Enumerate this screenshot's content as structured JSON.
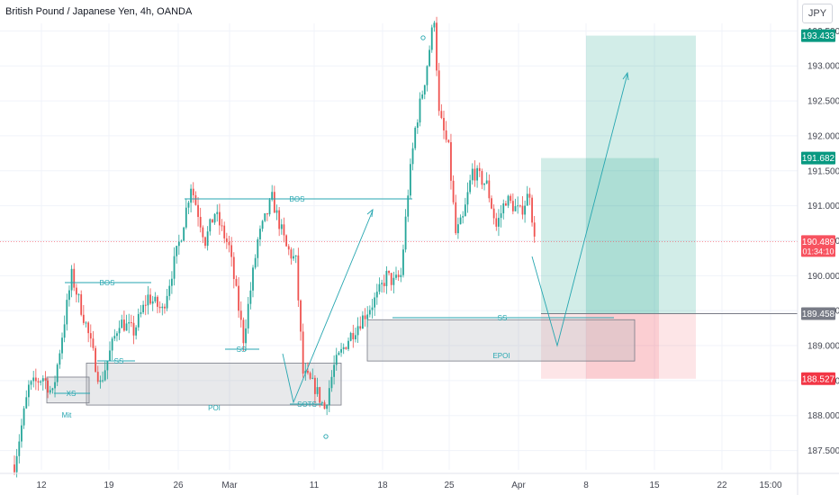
{
  "header": {
    "title": "British Pound / Japanese Yen, 4h, OANDA",
    "currency": "JPY"
  },
  "colors": {
    "up": "#26a69a",
    "down": "#ef5350",
    "accent": "#26a6b0",
    "target": "#089981",
    "stop": "#f23645",
    "current": "#f7525f",
    "neutral": "#787b86"
  },
  "chart_data": {
    "type": "candlestick",
    "title": "British Pound / Japanese Yen, 4h, OANDA",
    "ylim": [
      187.25,
      193.95
    ],
    "y_ticks": [
      "187.500",
      "188.000",
      "188.500",
      "189.000",
      "189.500",
      "190.000",
      "190.500",
      "191.000",
      "191.500",
      "192.000",
      "192.500",
      "193.000",
      "193.500"
    ],
    "x_ticks": [
      "12",
      "19",
      "26",
      "Mar",
      "11",
      "18",
      "25",
      "Apr",
      "8",
      "15",
      "22",
      "15:00"
    ],
    "key_points": [
      {
        "x": 0,
        "p": 187.3
      },
      {
        "x": 6,
        "p": 188.4
      },
      {
        "x": 12,
        "p": 188.55
      },
      {
        "x": 16,
        "p": 188.3
      },
      {
        "x": 24,
        "p": 190.0
      },
      {
        "x": 30,
        "p": 189.3
      },
      {
        "x": 36,
        "p": 188.45
      },
      {
        "x": 44,
        "p": 189.35
      },
      {
        "x": 50,
        "p": 189.2
      },
      {
        "x": 56,
        "p": 189.7
      },
      {
        "x": 62,
        "p": 189.5
      },
      {
        "x": 70,
        "p": 190.6
      },
      {
        "x": 74,
        "p": 191.3
      },
      {
        "x": 80,
        "p": 190.5
      },
      {
        "x": 84,
        "p": 190.9
      },
      {
        "x": 90,
        "p": 190.4
      },
      {
        "x": 96,
        "p": 189.1
      },
      {
        "x": 102,
        "p": 190.5
      },
      {
        "x": 108,
        "p": 191.1
      },
      {
        "x": 114,
        "p": 190.4
      },
      {
        "x": 118,
        "p": 190.2
      },
      {
        "x": 121,
        "p": 188.6
      },
      {
        "x": 126,
        "p": 188.4
      },
      {
        "x": 130,
        "p": 188.1
      },
      {
        "x": 134,
        "p": 188.7
      },
      {
        "x": 140,
        "p": 189.1
      },
      {
        "x": 146,
        "p": 189.4
      },
      {
        "x": 152,
        "p": 189.7
      },
      {
        "x": 156,
        "p": 190.0
      },
      {
        "x": 159,
        "p": 189.9
      },
      {
        "x": 162,
        "p": 190.0
      },
      {
        "x": 165,
        "p": 191.2
      },
      {
        "x": 168,
        "p": 192.1
      },
      {
        "x": 172,
        "p": 192.8
      },
      {
        "x": 176,
        "p": 193.7
      },
      {
        "x": 178,
        "p": 192.3
      },
      {
        "x": 182,
        "p": 191.8
      },
      {
        "x": 185,
        "p": 190.6
      },
      {
        "x": 188,
        "p": 190.8
      },
      {
        "x": 192,
        "p": 191.5
      },
      {
        "x": 198,
        "p": 191.3
      },
      {
        "x": 202,
        "p": 190.7
      },
      {
        "x": 206,
        "p": 191.1
      },
      {
        "x": 212,
        "p": 190.9
      },
      {
        "x": 216,
        "p": 191.2
      },
      {
        "x": 218,
        "p": 190.5
      }
    ],
    "levels": {
      "target": "193.433",
      "intermediate": "191.682",
      "current": "190.489",
      "countdown": "01:34:10",
      "entry": "189.458",
      "stop": "188.527"
    },
    "annotations": {
      "bos_upper": "BOS",
      "bos_lower": "BOS",
      "ss_left": "SS",
      "ss_mid": "SS",
      "ss_right": "SS",
      "xs": "XS",
      "sots": "SOTS",
      "poi": "POI",
      "epoi": "EPOI",
      "mit": "Mit"
    }
  }
}
